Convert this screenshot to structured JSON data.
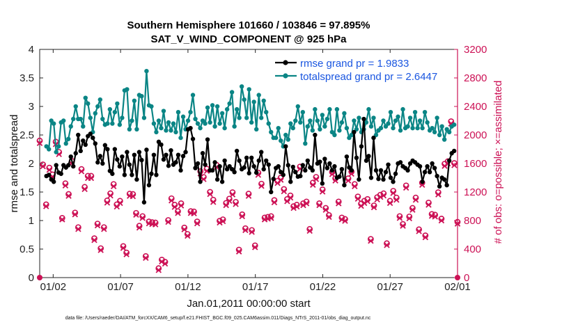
{
  "chart_data": {
    "type": "line",
    "title": "Southern Hemisphere 101660 / 103846 = 97.895%",
    "subtitle": "SAT_V_WIND_COMPONENT @ 925 hPa",
    "xlabel": "Jan.01,2011 00:00:00 start",
    "ylabel": "rmse and totalspread",
    "ylabel_right": "# of obs: o=possible; ×=assimilated",
    "footnote": "data file: /Users/raeder/DAI/ATM_forcXX/CAM6_setup/f.e21.FHIST_BGC.f09_025.CAM6assim.011/Diags_NTrS_2011-01/obs_diag_output.nc",
    "x_ticks": [
      "01/02",
      "01/07",
      "01/12",
      "01/17",
      "01/22",
      "01/27",
      "02/01"
    ],
    "x_tick_days": [
      1,
      6,
      11,
      16,
      21,
      26,
      31
    ],
    "xlim": [
      0,
      31
    ],
    "ylim": [
      0,
      4
    ],
    "y_ticks": [
      "0",
      "0.5",
      "1",
      "1.5",
      "2",
      "2.5",
      "3",
      "3.5",
      "4"
    ],
    "ylim_right": [
      0,
      3200
    ],
    "y_ticks_right": [
      "0",
      "400",
      "800",
      "1200",
      "1600",
      "2000",
      "2400",
      "2800",
      "3200"
    ],
    "grid": false,
    "legend_position": "top-right",
    "colors": {
      "rmse": "#000000",
      "totalspread": "#0a8585",
      "obs": "#cc1155",
      "legend_text": "#1a56e0"
    },
    "series": [
      {
        "name": "rmse grand pr = 1.9833",
        "axis": "left",
        "values": [
          1.78,
          1.8,
          1.72,
          1.68,
          1.97,
          1.84,
          1.82,
          1.97,
          1.93,
          1.97,
          2.12,
          1.95,
          2.18,
          2.5,
          2.22,
          2.4,
          2.33,
          2.48,
          2.52,
          2.45,
          2.35,
          2.02,
          2.13,
          2.0,
          2.32,
          2.25,
          1.87,
          1.82,
          2.25,
          2.07,
          1.95,
          2.12,
          1.8,
          2.2,
          1.98,
          1.8,
          2.15,
          1.72,
          2.2,
          2.06,
          1.32,
          2.24,
          1.62,
          1.82,
          2.15,
          1.8,
          2.38,
          2.33,
          2.07,
          2.15,
          1.96,
          2.23,
          1.98,
          2.02,
          2.15,
          1.88,
          2.13,
          2.2,
          2.6,
          2.62,
          2.43,
          1.92,
          2.0,
          1.68,
          2.18,
          1.98,
          2.42,
          1.88,
          1.88,
          2.02,
          1.72,
          1.95,
          1.68,
          2.05,
          1.9,
          1.95,
          1.9,
          1.85,
          2.22,
          2.05,
          1.9,
          1.93,
          2.1,
          1.83,
          2.1,
          1.95,
          1.84,
          2.05,
          2.2,
          1.9,
          2.05,
          1.98,
          1.5,
          1.73,
          1.92,
          1.95,
          1.85,
          1.8,
          2.3,
          1.97,
          1.68,
          1.94,
          1.85,
          1.77,
          1.78,
          1.97,
          1.88,
          2.05,
          1.93,
          1.88,
          2.5,
          2.0,
          2.03,
          1.65,
          2.08,
          1.92,
          2.0,
          1.88,
          1.95,
          1.75,
          1.77,
          1.9,
          1.62,
          2.12,
          1.93,
          1.88,
          2.55,
          2.1,
          1.72,
          2.3,
          2.78,
          2.05,
          2.13,
          1.75,
          2.45,
          1.88,
          1.73,
          1.88,
          1.72,
          1.85,
          1.98,
          1.75,
          1.68,
          1.82,
          2.0,
          2.02,
          1.95,
          1.92,
          1.88,
          2.0,
          2.05,
          2.02,
          1.98,
          1.95,
          1.68,
          1.85,
          1.95,
          1.85,
          2.0,
          1.92,
          1.78,
          1.6,
          1.75,
          1.72,
          1.62,
          2.05,
          2.18,
          2.22
        ]
      },
      {
        "name": "totalspread grand pr = 2.6447",
        "axis": "left",
        "values": [
          2.3,
          2.25,
          2.75,
          2.7,
          2.2,
          2.3,
          2.72,
          2.75,
          2.35,
          2.43,
          2.65,
          2.78,
          3.0,
          2.78,
          2.78,
          2.65,
          3.15,
          3.05,
          2.8,
          2.55,
          2.88,
          3.0,
          3.12,
          2.78,
          2.68,
          2.7,
          2.95,
          2.7,
          2.9,
          3.05,
          2.68,
          2.8,
          3.28,
          3.3,
          2.6,
          2.75,
          3.1,
          2.6,
          3.2,
          3.18,
          2.8,
          3.62,
          3.02,
          3.0,
          2.7,
          2.55,
          2.75,
          2.62,
          2.92,
          2.58,
          2.72,
          2.58,
          2.7,
          2.55,
          2.9,
          2.45,
          2.82,
          2.6,
          2.75,
          2.9,
          3.2,
          2.78,
          2.7,
          2.62,
          2.75,
          2.7,
          2.98,
          2.72,
          3.02,
          2.65,
          3.0,
          2.7,
          2.88,
          2.62,
          2.95,
          3.05,
          3.25,
          2.65,
          2.95,
          2.8,
          3.35,
          3.12,
          2.8,
          3.3,
          2.72,
          3.08,
          2.6,
          3.2,
          2.8,
          3.1,
          2.9,
          2.7,
          2.55,
          2.45,
          2.45,
          2.62,
          2.4,
          2.3,
          2.5,
          2.42,
          2.7,
          2.62,
          2.75,
          3.0,
          2.72,
          2.9,
          2.35,
          2.65,
          2.75,
          2.58,
          2.95,
          2.75,
          2.6,
          2.85,
          2.65,
          2.78,
          2.95,
          2.55,
          2.5,
          2.95,
          2.58,
          2.72,
          2.88,
          2.62,
          2.45,
          2.5,
          2.75,
          2.6,
          2.8,
          2.55,
          2.6,
          2.72,
          2.95,
          2.65,
          2.8,
          2.5,
          2.58,
          2.62,
          2.75,
          2.65,
          2.7,
          2.9,
          2.62,
          2.75,
          2.82,
          2.58,
          2.95,
          2.62,
          2.65,
          2.8,
          2.62,
          2.9,
          2.62,
          2.75,
          2.62,
          2.9,
          2.72,
          2.58,
          2.62,
          2.55,
          2.8,
          2.5,
          2.65,
          2.42,
          2.6,
          2.55,
          2.65,
          2.68
        ]
      },
      {
        "name": "possible",
        "axis": "right",
        "marker": "circle-open",
        "values": [
          1920,
          1585,
          1025,
          1540,
          1445,
          1905,
          1760,
          835,
          1320,
          1170,
          1635,
          910,
          705,
          1520,
          1270,
          1425,
          1425,
          550,
          755,
          410,
          705,
          1080,
          1180,
          1310,
          1025,
          1075,
          440,
          350,
          1175,
          1170,
          905,
          725,
          860,
          300,
          785,
          775,
          770,
          130,
          250,
          220,
          805,
          1110,
          1020,
          930,
          1040,
          700,
          610,
          930,
          925,
          785,
          1490,
          1410,
          1525,
          1200,
          1090,
          1580,
          795,
          815,
          1045,
          1105,
          1195,
          1060,
          390,
          885,
          690,
          1175,
          665,
          450,
          1470,
          1315,
          840,
          850,
          860,
          1085,
          1355,
          1400,
          1240,
          1100,
          1150,
          1000,
          1020,
          1555,
          1040,
          1065,
          680,
          1330,
          1410,
          1040,
          1235,
          975,
          875,
          1480,
          1390,
          1065,
          840,
          820,
          1390,
          1485,
          1310,
          1135,
          1035,
          1075,
          1100,
          540,
          1010,
          1125,
          1160,
          1180,
          480,
          1075,
          1215,
          1120,
          860,
          750,
          1290,
          855,
          975,
          1120,
          675,
          1330,
          590,
          1050,
          890,
          880,
          1195,
          825,
          1595,
          1630,
          2190,
          1605,
          780
        ]
      },
      {
        "name": "assimilated",
        "axis": "right",
        "marker": "cross",
        "values": [
          1885,
          1560,
          1000,
          1510,
          1415,
          1870,
          1730,
          815,
          1290,
          1145,
          1600,
          885,
          680,
          1490,
          1240,
          1395,
          1395,
          525,
          730,
          385,
          680,
          1050,
          1150,
          1280,
          995,
          1045,
          415,
          325,
          1145,
          1140,
          880,
          700,
          835,
          275,
          760,
          750,
          745,
          105,
          225,
          195,
          780,
          1080,
          990,
          905,
          1010,
          675,
          585,
          905,
          900,
          760,
          1460,
          1380,
          1495,
          1170,
          1060,
          1550,
          770,
          790,
          1015,
          1075,
          1165,
          1030,
          365,
          860,
          665,
          1145,
          640,
          425,
          1440,
          1285,
          815,
          825,
          835,
          1055,
          1325,
          1370,
          1210,
          1070,
          1120,
          975,
          995,
          1525,
          1015,
          1040,
          655,
          1300,
          1380,
          1015,
          1205,
          950,
          850,
          1450,
          1360,
          1040,
          815,
          795,
          1360,
          1455,
          1280,
          1105,
          1005,
          1045,
          1070,
          515,
          985,
          1095,
          1130,
          1150,
          455,
          1045,
          1185,
          1090,
          835,
          725,
          1260,
          830,
          950,
          1090,
          650,
          1300,
          565,
          1020,
          865,
          855,
          1165,
          800,
          1565,
          1600,
          2160,
          1575,
          755
        ]
      }
    ]
  }
}
